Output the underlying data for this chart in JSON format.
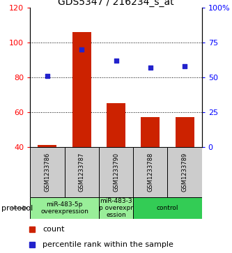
{
  "title": "GDS5347 / 216234_s_at",
  "samples": [
    "GSM1233786",
    "GSM1233787",
    "GSM1233790",
    "GSM1233788",
    "GSM1233789"
  ],
  "bar_values": [
    41,
    106,
    65,
    57,
    57
  ],
  "percentile_values": [
    51,
    70,
    62,
    57,
    58
  ],
  "bar_color": "#cc2200",
  "dot_color": "#2222cc",
  "ylim_left": [
    40,
    120
  ],
  "ylim_right": [
    0,
    100
  ],
  "yticks_left": [
    40,
    60,
    80,
    100,
    120
  ],
  "yticks_right": [
    0,
    25,
    50,
    75,
    100
  ],
  "ytick_labels_right": [
    "0",
    "25",
    "50",
    "75",
    "100%"
  ],
  "grid_lines": [
    60,
    80,
    100
  ],
  "group_positions": [
    {
      "start": 0,
      "end": 1,
      "label": "miR-483-5p\noverexpression",
      "color": "#99ee99"
    },
    {
      "start": 2,
      "end": 2,
      "label": "miR-483-3\np overexpr\nession",
      "color": "#99ee99"
    },
    {
      "start": 3,
      "end": 4,
      "label": "control",
      "color": "#33cc55"
    }
  ],
  "protocol_label": "protocol",
  "legend_count_label": "count",
  "legend_percentile_label": "percentile rank within the sample",
  "background_color": "#ffffff",
  "title_fontsize": 10,
  "tick_fontsize": 8,
  "sample_fontsize": 6,
  "group_fontsize": 6.5
}
